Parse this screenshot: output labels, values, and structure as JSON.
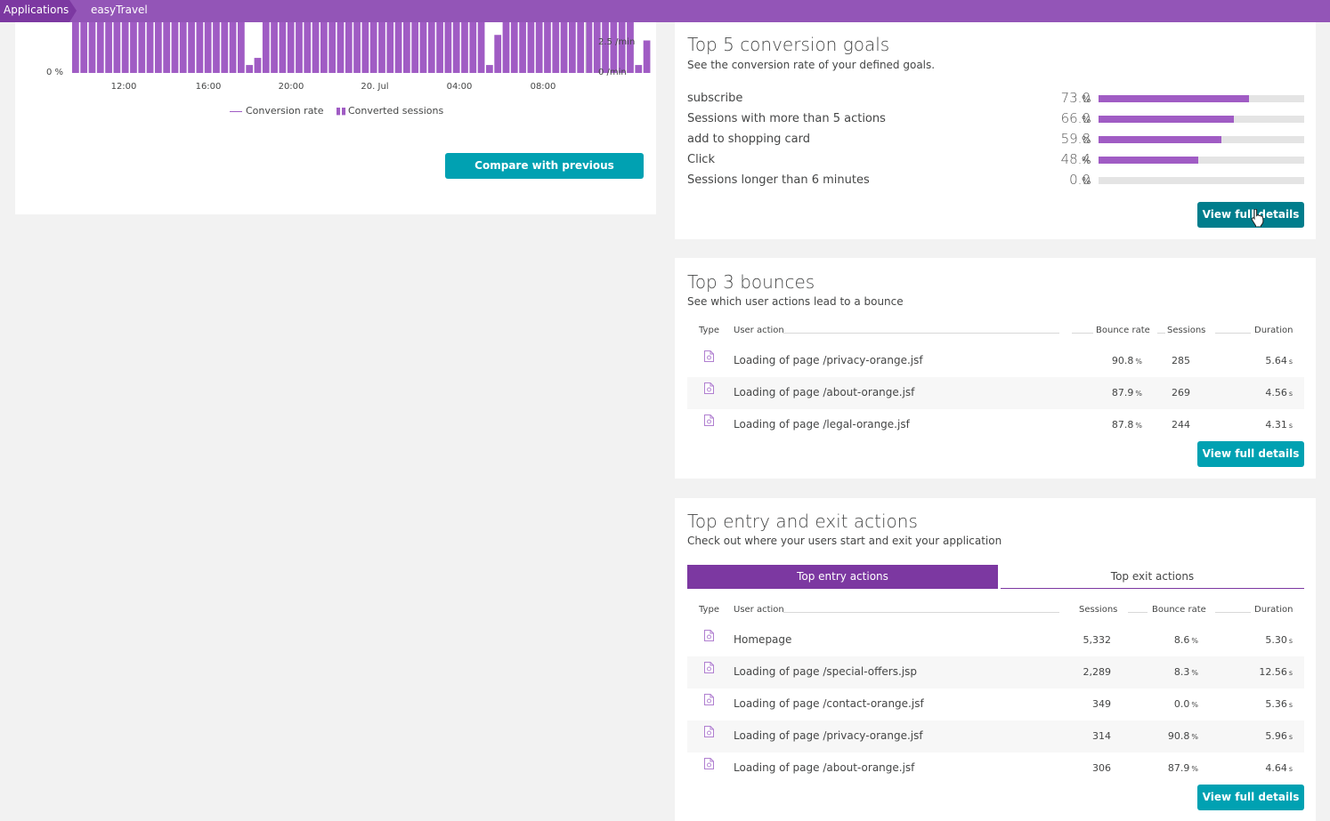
{
  "breadcrumb": {
    "root": "Applications",
    "app": "easyTravel"
  },
  "conversion_chart": {
    "chart_data": {
      "type": "bar",
      "x_ticks": [
        "12:00",
        "16:00",
        "20:00",
        "20. Jul",
        "04:00",
        "08:00"
      ],
      "left_axis_label": "0 %",
      "right_axis_labels": [
        "2.5 /min",
        "0 /min"
      ],
      "series": [
        {
          "name": "Conversion rate",
          "type": "line",
          "values": []
        },
        {
          "name": "Converted sessions",
          "type": "bar",
          "values": [
            3.2,
            3.2,
            3.2,
            3.2,
            3.2,
            3.2,
            3.2,
            3.2,
            3.2,
            3.2,
            3.2,
            3.2,
            3.2,
            3.2,
            3.2,
            3.2,
            3.2,
            3.2,
            3.2,
            3.2,
            3.2,
            0.5,
            0.95,
            3.2,
            3.2,
            3.2,
            3.2,
            3.2,
            3.2,
            3.2,
            3.2,
            3.2,
            3.2,
            3.2,
            3.2,
            3.2,
            3.2,
            3.2,
            3.2,
            3.2,
            3.2,
            3.2,
            3.2,
            3.2,
            3.2,
            3.2,
            3.2,
            3.2,
            3.2,
            3.2,
            0.5,
            2.4,
            3.2,
            3.2,
            3.2,
            3.2,
            3.2,
            3.2,
            3.2,
            3.2,
            3.2,
            3.2,
            3.2,
            3.2,
            3.2,
            3.2,
            3.2,
            3.2,
            0.5,
            2.05
          ]
        }
      ],
      "ylim_right": [
        0,
        3.2
      ]
    },
    "legend": {
      "line": "Conversion rate",
      "bars": "Converted sessions"
    },
    "compare_button": "Compare with previous timeframe"
  },
  "goals": {
    "title": "Top 5 conversion goals",
    "subtitle": "See the conversion rate of your defined goals.",
    "items": [
      {
        "label": "subscribe",
        "value": "73.0",
        "unit": "%",
        "fraction": 0.73
      },
      {
        "label": "Sessions with more than 5 actions",
        "value": "66.0",
        "unit": "%",
        "fraction": 0.66
      },
      {
        "label": "add to shopping card",
        "value": "59.8",
        "unit": "%",
        "fraction": 0.598
      },
      {
        "label": "Click",
        "value": "48.4",
        "unit": "%",
        "fraction": 0.484
      },
      {
        "label": "Sessions longer than 6 minutes",
        "value": "0.0",
        "unit": "%",
        "fraction": 0.0
      }
    ],
    "button": "View full details"
  },
  "bounces": {
    "title": "Top 3 bounces",
    "subtitle": "See which user actions lead to a bounce",
    "headers": {
      "type": "Type",
      "action": "User action",
      "bounce": "Bounce rate",
      "sessions": "Sessions",
      "duration": "Duration"
    },
    "rows": [
      {
        "action": "Loading of page /privacy-orange.jsf",
        "bounce": "90.8",
        "bounce_unit": "%",
        "sessions": "285",
        "duration": "5.64",
        "duration_unit": "s"
      },
      {
        "action": "Loading of page /about-orange.jsf",
        "bounce": "87.9",
        "bounce_unit": "%",
        "sessions": "269",
        "duration": "4.56",
        "duration_unit": "s"
      },
      {
        "action": "Loading of page /legal-orange.jsf",
        "bounce": "87.8",
        "bounce_unit": "%",
        "sessions": "244",
        "duration": "4.31",
        "duration_unit": "s"
      }
    ],
    "button": "View full details"
  },
  "entry_exit": {
    "title": "Top entry and exit actions",
    "subtitle": "Check out where your users start and exit your application",
    "tabs": {
      "entry": "Top entry actions",
      "exit": "Top exit actions"
    },
    "headers": {
      "type": "Type",
      "action": "User action",
      "sessions": "Sessions",
      "bounce": "Bounce rate",
      "duration": "Duration"
    },
    "rows": [
      {
        "action": "Homepage",
        "sessions": "5,332",
        "bounce": "8.6",
        "bounce_unit": "%",
        "duration": "5.30",
        "duration_unit": "s"
      },
      {
        "action": "Loading of page /special-offers.jsp",
        "sessions": "2,289",
        "bounce": "8.3",
        "bounce_unit": "%",
        "duration": "12.56",
        "duration_unit": "s"
      },
      {
        "action": "Loading of page /contact-orange.jsf",
        "sessions": "349",
        "bounce": "0.0",
        "bounce_unit": "%",
        "duration": "5.36",
        "duration_unit": "s"
      },
      {
        "action": "Loading of page /privacy-orange.jsf",
        "sessions": "314",
        "bounce": "90.8",
        "bounce_unit": "%",
        "duration": "5.96",
        "duration_unit": "s"
      },
      {
        "action": "Loading of page /about-orange.jsf",
        "sessions": "306",
        "bounce": "87.9",
        "bounce_unit": "%",
        "duration": "4.64",
        "duration_unit": "s"
      }
    ],
    "button": "View full details"
  },
  "colors": {
    "brand": "#9355b7",
    "brand_dark": "#7c38a1",
    "accent": "#00a1b2",
    "bar": "#a05cc4"
  }
}
